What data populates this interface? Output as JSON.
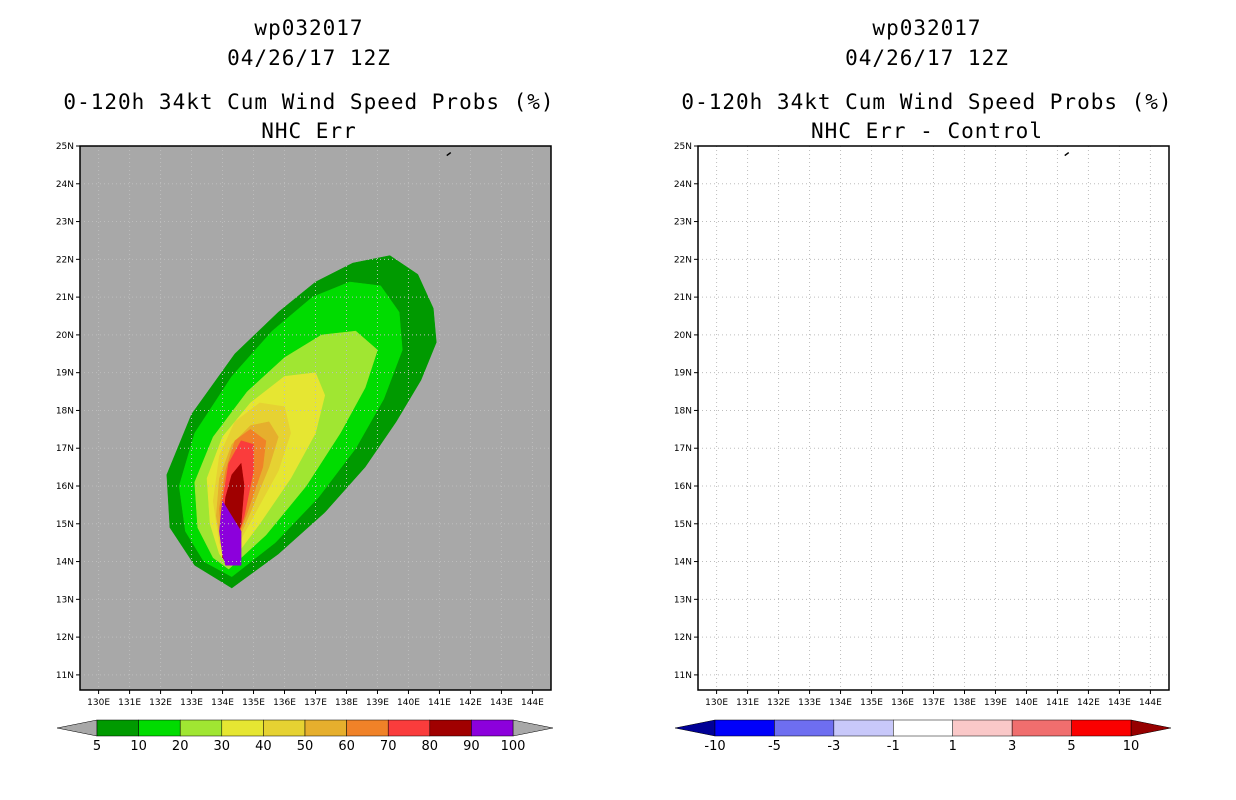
{
  "panels": [
    {
      "storm_id": "wp032017",
      "datetime": "04/26/17 12Z",
      "title": "0-120h 34kt Cum Wind Speed Probs (%)",
      "subtitle": "NHC Err",
      "background_color": "#a8a8a8",
      "colorbar_labels": [
        "5",
        "10",
        "20",
        "30",
        "40",
        "50",
        "60",
        "70",
        "80",
        "90",
        "100"
      ]
    },
    {
      "storm_id": "wp032017",
      "datetime": "04/26/17 12Z",
      "title": "0-120h 34kt Cum Wind Speed Probs (%)",
      "subtitle": "NHC Err - Control",
      "background_color": "#ffffff",
      "colorbar_labels": [
        "-10",
        "-5",
        "-3",
        "-1",
        "1",
        "3",
        "5",
        "10"
      ]
    }
  ],
  "chart_data": [
    {
      "type": "contour_map",
      "title": "0-120h 34kt Cum Wind Speed Probs (%)",
      "subtitle": "NHC Err",
      "x_ticks": [
        "130E",
        "131E",
        "132E",
        "133E",
        "134E",
        "135E",
        "136E",
        "137E",
        "138E",
        "139E",
        "140E",
        "141E",
        "142E",
        "143E",
        "144E"
      ],
      "y_ticks": [
        "11N",
        "12N",
        "13N",
        "14N",
        "15N",
        "16N",
        "17N",
        "18N",
        "19N",
        "20N",
        "21N",
        "22N",
        "23N",
        "24N",
        "25N"
      ],
      "xlim": [
        129.4,
        144.6
      ],
      "ylim": [
        10.6,
        25.0
      ],
      "grid": "dotted",
      "color_levels": [
        5,
        10,
        20,
        30,
        40,
        50,
        60,
        70,
        80,
        90,
        100
      ],
      "colors": [
        "#009a00",
        "#00dc00",
        "#a0e632",
        "#e6e632",
        "#e6d232",
        "#e6af2d",
        "#f08228",
        "#fa3c3c",
        "#a00000",
        "#8c00dc"
      ],
      "under_color": "#a8a8a8",
      "over_color": "#a8a8a8",
      "contours": [
        {
          "level": 5,
          "color": "#009a00",
          "points": [
            [
              134.3,
              13.3
            ],
            [
              135.8,
              14.2
            ],
            [
              137.3,
              15.3
            ],
            [
              138.6,
              16.5
            ],
            [
              139.6,
              17.7
            ],
            [
              140.4,
              18.8
            ],
            [
              140.9,
              19.8
            ],
            [
              140.8,
              20.7
            ],
            [
              140.3,
              21.6
            ],
            [
              139.4,
              22.1
            ],
            [
              138.2,
              21.9
            ],
            [
              137.0,
              21.4
            ],
            [
              135.8,
              20.6
            ],
            [
              134.4,
              19.5
            ],
            [
              133.0,
              17.9
            ],
            [
              132.2,
              16.3
            ],
            [
              132.3,
              14.9
            ],
            [
              133.1,
              13.9
            ]
          ]
        },
        {
          "level": 10,
          "color": "#00dc00",
          "points": [
            [
              134.3,
              13.6
            ],
            [
              135.7,
              14.5
            ],
            [
              137.1,
              15.7
            ],
            [
              138.3,
              17.0
            ],
            [
              139.2,
              18.3
            ],
            [
              139.8,
              19.6
            ],
            [
              139.7,
              20.6
            ],
            [
              139.1,
              21.3
            ],
            [
              138.1,
              21.4
            ],
            [
              136.9,
              21.0
            ],
            [
              135.6,
              20.1
            ],
            [
              134.3,
              18.9
            ],
            [
              133.1,
              17.4
            ],
            [
              132.6,
              16.0
            ],
            [
              132.8,
              14.8
            ],
            [
              133.4,
              14.0
            ]
          ]
        },
        {
          "level": 20,
          "color": "#a0e632",
          "points": [
            [
              134.2,
              13.8
            ],
            [
              135.4,
              14.7
            ],
            [
              136.7,
              16.0
            ],
            [
              137.8,
              17.4
            ],
            [
              138.6,
              18.6
            ],
            [
              139.0,
              19.6
            ],
            [
              138.3,
              20.1
            ],
            [
              137.2,
              20.0
            ],
            [
              136.0,
              19.4
            ],
            [
              134.8,
              18.5
            ],
            [
              133.7,
              17.3
            ],
            [
              133.1,
              16.1
            ],
            [
              133.2,
              14.9
            ],
            [
              133.7,
              14.1
            ]
          ]
        },
        {
          "level": 30,
          "color": "#e6e632",
          "points": [
            [
              134.2,
              13.9
            ],
            [
              135.2,
              15.0
            ],
            [
              136.2,
              16.2
            ],
            [
              137.0,
              17.4
            ],
            [
              137.3,
              18.4
            ],
            [
              137.0,
              19.0
            ],
            [
              136.0,
              18.9
            ],
            [
              134.9,
              18.2
            ],
            [
              134.0,
              17.3
            ],
            [
              133.5,
              16.2
            ],
            [
              133.6,
              15.0
            ],
            [
              133.9,
              14.2
            ]
          ]
        },
        {
          "level": 40,
          "color": "#e6d232",
          "points": [
            [
              134.2,
              14.0
            ],
            [
              135.0,
              15.2
            ],
            [
              135.8,
              16.4
            ],
            [
              136.2,
              17.4
            ],
            [
              136.0,
              18.1
            ],
            [
              135.2,
              18.2
            ],
            [
              134.4,
              17.7
            ],
            [
              133.9,
              16.8
            ],
            [
              133.7,
              15.6
            ],
            [
              133.9,
              14.5
            ]
          ]
        },
        {
          "level": 50,
          "color": "#e6af2d",
          "points": [
            [
              134.2,
              14.0
            ],
            [
              134.9,
              15.3
            ],
            [
              135.5,
              16.5
            ],
            [
              135.8,
              17.3
            ],
            [
              135.5,
              17.7
            ],
            [
              134.9,
              17.6
            ],
            [
              134.3,
              17.1
            ],
            [
              133.9,
              16.2
            ],
            [
              133.8,
              15.2
            ],
            [
              134.0,
              14.3
            ]
          ]
        },
        {
          "level": 60,
          "color": "#f08228",
          "points": [
            [
              134.2,
              14.0
            ],
            [
              134.8,
              15.3
            ],
            [
              135.3,
              16.5
            ],
            [
              135.4,
              17.2
            ],
            [
              134.9,
              17.5
            ],
            [
              134.4,
              17.2
            ],
            [
              134.1,
              16.4
            ],
            [
              133.9,
              15.4
            ],
            [
              134.0,
              14.4
            ]
          ]
        },
        {
          "level": 70,
          "color": "#fa3c3c",
          "points": [
            [
              134.2,
              13.9
            ],
            [
              134.7,
              15.2
            ],
            [
              135.0,
              16.4
            ],
            [
              135.0,
              17.1
            ],
            [
              134.6,
              17.2
            ],
            [
              134.2,
              16.6
            ],
            [
              134.0,
              15.6
            ],
            [
              134.0,
              14.6
            ]
          ]
        },
        {
          "level": 80,
          "color": "#a00000",
          "points": [
            [
              134.2,
              13.9
            ],
            [
              134.6,
              15.0
            ],
            [
              134.7,
              16.0
            ],
            [
              134.6,
              16.6
            ],
            [
              134.3,
              16.3
            ],
            [
              134.1,
              15.7
            ],
            [
              134.0,
              14.8
            ],
            [
              134.0,
              14.1
            ]
          ]
        },
        {
          "level": 90,
          "color": "#8c00dc",
          "points": [
            [
              134.1,
              13.9
            ],
            [
              134.6,
              13.9
            ],
            [
              134.6,
              14.8
            ],
            [
              134.0,
              15.6
            ],
            [
              133.9,
              14.8
            ],
            [
              134.0,
              14.2
            ]
          ]
        }
      ],
      "track_marker": [
        141.3,
        24.8
      ]
    },
    {
      "type": "contour_map",
      "title": "0-120h 34kt Cum Wind Speed Probs (%)",
      "subtitle": "NHC Err - Control",
      "x_ticks": [
        "130E",
        "131E",
        "132E",
        "133E",
        "134E",
        "135E",
        "136E",
        "137E",
        "138E",
        "139E",
        "140E",
        "141E",
        "142E",
        "143E",
        "144E"
      ],
      "y_ticks": [
        "11N",
        "12N",
        "13N",
        "14N",
        "15N",
        "16N",
        "17N",
        "18N",
        "19N",
        "20N",
        "21N",
        "22N",
        "23N",
        "24N",
        "25N"
      ],
      "xlim": [
        129.4,
        144.6
      ],
      "ylim": [
        10.6,
        25.0
      ],
      "grid": "dotted",
      "color_levels": [
        -10,
        -5,
        -3,
        -1,
        1,
        3,
        5,
        10
      ],
      "colors": [
        "#0000fa",
        "#6e6ef0",
        "#c8c8fa",
        "#ffffff",
        "#fac8c8",
        "#f06e6e",
        "#fa0000"
      ],
      "under_color": "#000096",
      "over_color": "#960000",
      "contours": [],
      "track_marker": [
        141.3,
        24.8
      ]
    }
  ]
}
